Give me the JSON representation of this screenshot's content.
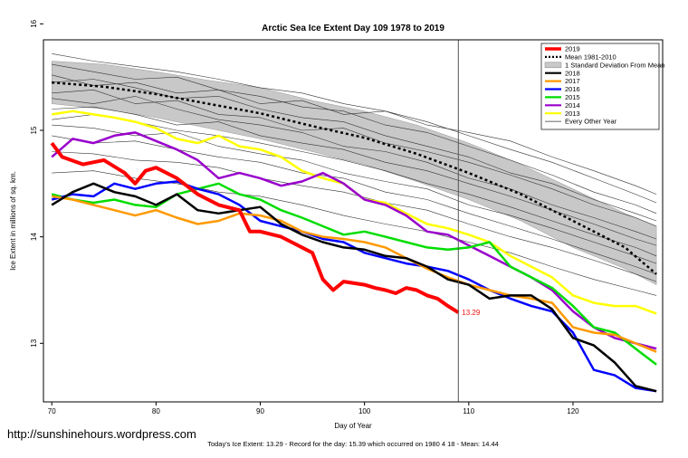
{
  "watermark": "http://sunshinehours.wordpress.com",
  "footer_text": "Today's Ice Extent: 13.29  - Record for the day: 15.39 which occurred on 1980 4 18  - Mean: 14.44",
  "chart_data": {
    "type": "line",
    "title": "Arctic Sea Ice Extent Day 109 1978 to 2019",
    "xlabel": "Day of Year",
    "ylabel": "Ice Extent in millions of sq. km.",
    "xlim": [
      69.2,
      128.6
    ],
    "ylim": [
      12.45,
      15.85
    ],
    "x_ticks": [
      70,
      80,
      90,
      100,
      110,
      120
    ],
    "y_ticks": [
      13,
      14,
      15,
      16
    ],
    "vertical_marker_day": 109,
    "end_label": {
      "text": "13.29",
      "x": 109,
      "y": 13.29,
      "color": "#ee1111"
    },
    "legend": {
      "placement": "top-right",
      "entries": [
        {
          "label": "2019",
          "style": "line",
          "color": "#ff0000"
        },
        {
          "label": "Mean 1981-2010",
          "style": "dotted",
          "color": "#000000"
        },
        {
          "label": "1 Standard Deviation From Mean",
          "style": "box",
          "color": "#c8c8c8"
        },
        {
          "label": "2018",
          "style": "line",
          "color": "#000000"
        },
        {
          "label": "2017",
          "style": "line",
          "color": "#ff9900"
        },
        {
          "label": "2016",
          "style": "line",
          "color": "#0000ff"
        },
        {
          "label": "2015",
          "style": "line",
          "color": "#00dd00"
        },
        {
          "label": "2014",
          "style": "line",
          "color": "#9900cc"
        },
        {
          "label": "2013",
          "style": "line",
          "color": "#ffff00"
        },
        {
          "label": "Every Other Year",
          "style": "thin",
          "color": "#333333"
        }
      ]
    },
    "std_band": {
      "x": [
        70,
        75,
        80,
        85,
        90,
        95,
        100,
        105,
        110,
        115,
        120,
        125,
        128
      ],
      "upper": [
        15.65,
        15.62,
        15.55,
        15.47,
        15.4,
        15.28,
        15.18,
        15.05,
        14.88,
        14.68,
        14.45,
        14.22,
        14.1
      ],
      "lower": [
        15.25,
        15.2,
        15.12,
        15.02,
        14.92,
        14.8,
        14.68,
        14.52,
        14.35,
        14.15,
        13.9,
        13.7,
        13.55
      ]
    },
    "mean": {
      "x": [
        70,
        75,
        80,
        85,
        90,
        95,
        100,
        105,
        110,
        115,
        120,
        125,
        128
      ],
      "y": [
        15.45,
        15.41,
        15.34,
        15.25,
        15.16,
        15.04,
        14.93,
        14.78,
        14.6,
        14.4,
        14.15,
        13.9,
        13.65
      ]
    },
    "series": [
      {
        "name": "2019",
        "color": "#ff0000",
        "width": 4,
        "x": [
          70,
          71,
          73,
          75,
          77,
          78,
          79,
          80,
          82,
          84,
          86,
          88,
          89,
          90,
          92,
          93,
          95,
          96,
          97,
          98,
          100,
          101,
          102,
          103,
          104,
          105,
          106,
          107,
          108,
          109
        ],
        "y": [
          14.88,
          14.75,
          14.68,
          14.72,
          14.6,
          14.5,
          14.62,
          14.65,
          14.55,
          14.4,
          14.3,
          14.25,
          14.05,
          14.05,
          14.0,
          13.95,
          13.85,
          13.6,
          13.5,
          13.58,
          13.55,
          13.52,
          13.5,
          13.47,
          13.52,
          13.5,
          13.45,
          13.42,
          13.35,
          13.29
        ]
      },
      {
        "name": "2018",
        "color": "#000000",
        "width": 2.5,
        "x": [
          70,
          72,
          74,
          76,
          78,
          80,
          82,
          84,
          86,
          88,
          90,
          92,
          94,
          96,
          98,
          100,
          102,
          104,
          106,
          108,
          110,
          112,
          114,
          116,
          118,
          120,
          122,
          124,
          126,
          128
        ],
        "y": [
          14.3,
          14.42,
          14.5,
          14.42,
          14.38,
          14.3,
          14.4,
          14.25,
          14.22,
          14.25,
          14.28,
          14.12,
          14.02,
          13.95,
          13.9,
          13.88,
          13.82,
          13.8,
          13.72,
          13.6,
          13.55,
          13.42,
          13.45,
          13.45,
          13.32,
          13.05,
          12.98,
          12.82,
          12.6,
          12.55
        ]
      },
      {
        "name": "2017",
        "color": "#ff9900",
        "width": 2.5,
        "x": [
          70,
          72,
          74,
          76,
          78,
          80,
          82,
          84,
          86,
          88,
          90,
          92,
          94,
          96,
          98,
          100,
          102,
          104,
          106,
          108,
          110,
          112,
          114,
          116,
          118,
          120,
          122,
          124,
          126,
          128
        ],
        "y": [
          14.38,
          14.35,
          14.3,
          14.25,
          14.2,
          14.25,
          14.18,
          14.12,
          14.15,
          14.22,
          14.2,
          14.15,
          14.05,
          14.0,
          13.98,
          13.95,
          13.9,
          13.8,
          13.7,
          13.62,
          13.55,
          13.5,
          13.45,
          13.42,
          13.38,
          13.15,
          13.1,
          13.08,
          13.0,
          12.92
        ]
      },
      {
        "name": "2016",
        "color": "#0000ff",
        "width": 2.5,
        "x": [
          70,
          72,
          74,
          76,
          78,
          80,
          82,
          84,
          86,
          88,
          90,
          92,
          94,
          96,
          98,
          100,
          102,
          104,
          106,
          108,
          110,
          112,
          114,
          116,
          118,
          120,
          122,
          124,
          126,
          128
        ],
        "y": [
          14.35,
          14.4,
          14.38,
          14.5,
          14.45,
          14.5,
          14.52,
          14.45,
          14.4,
          14.3,
          14.15,
          14.1,
          14.05,
          13.98,
          13.95,
          13.85,
          13.8,
          13.75,
          13.72,
          13.68,
          13.6,
          13.5,
          13.42,
          13.35,
          13.3,
          13.1,
          12.75,
          12.7,
          12.58,
          12.55
        ]
      },
      {
        "name": "2015",
        "color": "#00dd00",
        "width": 2.5,
        "x": [
          70,
          72,
          74,
          76,
          78,
          80,
          82,
          84,
          86,
          88,
          90,
          92,
          94,
          96,
          98,
          100,
          102,
          104,
          106,
          108,
          110,
          112,
          114,
          116,
          118,
          120,
          122,
          124,
          126,
          128
        ],
        "y": [
          14.4,
          14.35,
          14.32,
          14.35,
          14.3,
          14.28,
          14.4,
          14.45,
          14.5,
          14.4,
          14.35,
          14.25,
          14.18,
          14.1,
          14.02,
          14.05,
          14.0,
          13.95,
          13.9,
          13.88,
          13.9,
          13.95,
          13.72,
          13.62,
          13.52,
          13.35,
          13.15,
          13.1,
          12.95,
          12.8
        ]
      },
      {
        "name": "2014",
        "color": "#9900cc",
        "width": 2.5,
        "x": [
          70,
          72,
          74,
          76,
          78,
          80,
          82,
          84,
          86,
          88,
          90,
          92,
          94,
          96,
          98,
          100,
          102,
          104,
          106,
          108,
          110,
          112,
          114,
          116,
          118,
          120,
          122,
          124,
          126,
          128
        ],
        "y": [
          14.75,
          14.92,
          14.88,
          14.95,
          14.98,
          14.9,
          14.82,
          14.72,
          14.55,
          14.6,
          14.55,
          14.48,
          14.52,
          14.6,
          14.5,
          14.35,
          14.3,
          14.2,
          14.05,
          14.02,
          13.92,
          13.82,
          13.72,
          13.62,
          13.5,
          13.3,
          13.15,
          13.05,
          13.0,
          12.95
        ]
      },
      {
        "name": "2013",
        "color": "#ffff00",
        "width": 2.5,
        "x": [
          70,
          72,
          74,
          76,
          78,
          80,
          82,
          84,
          86,
          88,
          90,
          92,
          94,
          96,
          98,
          100,
          102,
          104,
          106,
          108,
          110,
          112,
          114,
          116,
          118,
          120,
          122,
          124,
          126,
          128
        ],
        "y": [
          15.15,
          15.18,
          15.15,
          15.12,
          15.08,
          15.02,
          14.92,
          14.88,
          14.95,
          14.85,
          14.82,
          14.75,
          14.62,
          14.55,
          14.5,
          14.35,
          14.32,
          14.22,
          14.12,
          14.08,
          14.02,
          13.95,
          13.82,
          13.72,
          13.62,
          13.45,
          13.38,
          13.35,
          13.35,
          13.28
        ]
      }
    ],
    "other_years": {
      "color": "#333333",
      "x": [
        70,
        74,
        78,
        82,
        86,
        90,
        94,
        98,
        102,
        106,
        110,
        114,
        118,
        122,
        126,
        128
      ],
      "lines": [
        [
          15.52,
          15.42,
          15.45,
          15.35,
          15.38,
          15.25,
          15.28,
          15.15,
          15.18,
          15.05,
          14.98,
          14.9,
          14.75,
          14.62,
          14.48,
          14.4
        ],
        [
          15.35,
          15.38,
          15.25,
          15.28,
          15.15,
          15.12,
          15.0,
          15.02,
          14.88,
          14.8,
          14.7,
          14.58,
          14.45,
          14.3,
          14.18,
          14.1
        ],
        [
          15.2,
          15.22,
          15.15,
          15.05,
          15.08,
          14.95,
          14.88,
          14.82,
          14.7,
          14.62,
          14.5,
          14.38,
          14.25,
          14.12,
          13.98,
          13.92
        ],
        [
          15.05,
          15.02,
          14.95,
          14.98,
          14.85,
          14.78,
          14.72,
          14.6,
          14.52,
          14.45,
          14.3,
          14.2,
          14.08,
          13.95,
          13.82,
          13.75
        ],
        [
          15.62,
          15.55,
          15.48,
          15.5,
          15.38,
          15.32,
          15.22,
          15.18,
          15.05,
          14.98,
          14.85,
          14.72,
          14.58,
          14.42,
          14.3,
          14.22
        ],
        [
          14.95,
          14.88,
          14.9,
          14.82,
          14.75,
          14.7,
          14.6,
          14.55,
          14.42,
          14.35,
          14.22,
          14.1,
          13.98,
          13.85,
          13.72,
          13.65
        ],
        [
          15.45,
          15.48,
          15.4,
          15.3,
          15.32,
          15.2,
          15.12,
          15.08,
          14.95,
          14.85,
          14.75,
          14.6,
          14.5,
          14.35,
          14.22,
          14.15
        ],
        [
          15.3,
          15.25,
          15.32,
          15.2,
          15.1,
          15.05,
          14.98,
          14.85,
          14.8,
          14.7,
          14.55,
          14.45,
          14.3,
          14.18,
          14.05,
          13.98
        ],
        [
          14.8,
          14.78,
          14.72,
          14.7,
          14.65,
          14.55,
          14.48,
          14.42,
          14.32,
          14.25,
          14.12,
          14.0,
          13.9,
          13.78,
          13.65,
          13.58
        ],
        [
          15.72,
          15.65,
          15.6,
          15.55,
          15.48,
          15.4,
          15.35,
          15.25,
          15.18,
          15.08,
          14.95,
          14.82,
          14.7,
          14.55,
          14.4,
          14.32
        ],
        [
          15.1,
          15.15,
          15.08,
          15.0,
          14.95,
          14.88,
          14.8,
          14.72,
          14.62,
          14.5,
          14.4,
          14.28,
          14.15,
          14.02,
          13.9,
          13.82
        ],
        [
          14.6,
          14.62,
          14.55,
          14.5,
          14.42,
          14.38,
          14.3,
          14.2,
          14.12,
          14.05,
          13.95,
          13.85,
          13.72,
          13.6,
          13.5,
          13.45
        ]
      ]
    }
  }
}
